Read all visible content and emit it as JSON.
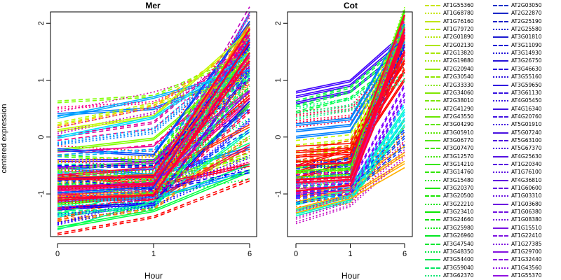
{
  "chart_data": {
    "type": "line",
    "ylabel": "centered expression",
    "ylim": [
      -1.75,
      2.2
    ],
    "y_ticks": [
      "-1",
      "0",
      "1",
      "2"
    ],
    "y_tick_values": [
      -1,
      0,
      1,
      2
    ],
    "panels": [
      {
        "title": "Mer",
        "xlabel": "Hour",
        "x_ticks": [
          "0",
          "1",
          "6"
        ]
      },
      {
        "title": "Cot",
        "xlabel": "Hour",
        "x_ticks": [
          "0",
          "1",
          "6"
        ]
      }
    ],
    "x": [
      "0",
      "1",
      "6"
    ],
    "series_note": "",
    "panel_profiles": {
      "Mer": [
        [
          -0.6,
          -0.6,
          0.9
        ],
        [
          -0.7,
          -0.55,
          1.3
        ],
        [
          -0.8,
          -0.7,
          1.6
        ],
        [
          -0.9,
          -0.75,
          1.8
        ],
        [
          -1.0,
          -0.95,
          2.0
        ],
        [
          -1.1,
          -1.0,
          1.5
        ],
        [
          -0.5,
          -0.5,
          1.1
        ],
        [
          -1.2,
          -1.1,
          0.7
        ],
        [
          -0.3,
          -0.4,
          1.9
        ],
        [
          0.5,
          0.6,
          1.3
        ],
        [
          0.3,
          0.65,
          1.1
        ],
        [
          0.1,
          0.45,
          1.6
        ],
        [
          -1.4,
          -1.2,
          0.1
        ],
        [
          -1.5,
          -1.0,
          -0.3
        ],
        [
          -1.6,
          -1.3,
          -0.6
        ],
        [
          -1.3,
          -1.15,
          0.4
        ],
        [
          -0.2,
          0.0,
          1.4
        ],
        [
          0.0,
          0.25,
          1.7
        ],
        [
          -0.8,
          -0.8,
          2.1
        ],
        [
          -1.1,
          -1.05,
          1.9
        ],
        [
          -0.65,
          -0.6,
          0.3
        ],
        [
          -0.7,
          -0.9,
          -0.55
        ],
        [
          -0.9,
          -1.0,
          0.0
        ],
        [
          -1.0,
          -0.9,
          0.6
        ],
        [
          -0.4,
          -0.3,
          1.2
        ],
        [
          -0.55,
          -0.45,
          0.8
        ],
        [
          -0.75,
          -0.7,
          1.0
        ],
        [
          -1.2,
          -1.15,
          1.2
        ],
        [
          -0.85,
          -0.8,
          1.45
        ],
        [
          -0.95,
          -0.85,
          1.75
        ],
        [
          -0.6,
          -0.75,
          -0.3
        ],
        [
          -1.05,
          -1.0,
          -0.5
        ]
      ],
      "Cot": [
        [
          -0.6,
          -0.3,
          1.2
        ],
        [
          -0.7,
          -0.5,
          1.6
        ],
        [
          -0.8,
          -0.6,
          1.9
        ],
        [
          -0.9,
          -0.85,
          2.0
        ],
        [
          -1.0,
          -1.0,
          0.4
        ],
        [
          -1.1,
          -1.05,
          0.1
        ],
        [
          0.7,
          0.9,
          1.7
        ],
        [
          0.5,
          0.75,
          1.5
        ],
        [
          0.3,
          0.4,
          1.3
        ],
        [
          0.1,
          0.2,
          1.8
        ],
        [
          -0.2,
          -0.1,
          1.9
        ],
        [
          -1.4,
          -1.1,
          -0.2
        ],
        [
          -1.3,
          -1.05,
          0.3
        ],
        [
          -0.4,
          -0.2,
          1.4
        ],
        [
          -0.5,
          -0.55,
          1.75
        ],
        [
          -0.65,
          -0.6,
          2.05
        ],
        [
          -0.75,
          -0.7,
          1.95
        ],
        [
          -0.85,
          -0.8,
          1.85
        ],
        [
          -1.2,
          -0.95,
          -0.35
        ],
        [
          -0.95,
          -0.9,
          0.8
        ],
        [
          0.4,
          0.55,
          1.1
        ],
        [
          -0.3,
          -0.25,
          1.55
        ],
        [
          -1.05,
          -0.9,
          0.0
        ],
        [
          -0.55,
          -0.5,
          2.1
        ]
      ]
    },
    "legend": {
      "col1": [
        {
          "label": "AT1G55360",
          "color": "#c8e600",
          "style": "dashed"
        },
        {
          "label": "AT1G68780",
          "color": "#c8e600",
          "style": "dotted"
        },
        {
          "label": "AT1G76160",
          "color": "#c0e600",
          "style": "solid"
        },
        {
          "label": "AT1G79720",
          "color": "#bce600",
          "style": "dashed"
        },
        {
          "label": "AT2G01890",
          "color": "#b4e600",
          "style": "dotted"
        },
        {
          "label": "AT2G02130",
          "color": "#aee600",
          "style": "solid"
        },
        {
          "label": "AT2G13820",
          "color": "#a8e600",
          "style": "dashed"
        },
        {
          "label": "AT2G19880",
          "color": "#a0e600",
          "style": "dotted"
        },
        {
          "label": "AT2G20940",
          "color": "#98e600",
          "style": "solid"
        },
        {
          "label": "AT2G30540",
          "color": "#90e600",
          "style": "dashed"
        },
        {
          "label": "AT2G33330",
          "color": "#88e600",
          "style": "dotted"
        },
        {
          "label": "AT2G34060",
          "color": "#80e600",
          "style": "solid"
        },
        {
          "label": "AT2G38010",
          "color": "#78e600",
          "style": "dashed"
        },
        {
          "label": "AT2G41290",
          "color": "#70e600",
          "style": "dotted"
        },
        {
          "label": "AT2G43550",
          "color": "#68e600",
          "style": "solid"
        },
        {
          "label": "AT3G04290",
          "color": "#60e600",
          "style": "dashed"
        },
        {
          "label": "AT3G05910",
          "color": "#58e600",
          "style": "dotted"
        },
        {
          "label": "AT3G06770",
          "color": "#50e600",
          "style": "solid"
        },
        {
          "label": "AT3G07470",
          "color": "#48e600",
          "style": "dashed"
        },
        {
          "label": "AT3G12570",
          "color": "#40e600",
          "style": "dotted"
        },
        {
          "label": "AT3G14210",
          "color": "#38e600",
          "style": "solid"
        },
        {
          "label": "AT3G14760",
          "color": "#30e600",
          "style": "dashed"
        },
        {
          "label": "AT3G15480",
          "color": "#28e600",
          "style": "dotted"
        },
        {
          "label": "AT3G20370",
          "color": "#20e600",
          "style": "solid"
        },
        {
          "label": "AT3G20500",
          "color": "#18e600",
          "style": "dashed"
        },
        {
          "label": "AT3G22210",
          "color": "#10e600",
          "style": "dotted"
        },
        {
          "label": "AT3G23410",
          "color": "#08e600",
          "style": "solid"
        },
        {
          "label": "AT3G24660",
          "color": "#00e600",
          "style": "dashed"
        },
        {
          "label": "AT3G25980",
          "color": "#00e610",
          "style": "dotted"
        },
        {
          "label": "AT3G26960",
          "color": "#00e620",
          "style": "solid"
        },
        {
          "label": "AT3G47540",
          "color": "#00e630",
          "style": "dashed"
        },
        {
          "label": "AT3G48350",
          "color": "#00e640",
          "style": "dotted"
        },
        {
          "label": "AT3G54400",
          "color": "#00e650",
          "style": "solid"
        },
        {
          "label": "AT3G59040",
          "color": "#00e660",
          "style": "dashed"
        },
        {
          "label": "AT3G62370",
          "color": "#00e670",
          "style": "dotted"
        }
      ],
      "col2": [
        {
          "label": "AT2G03050",
          "color": "#1a30c8",
          "style": "dashed"
        },
        {
          "label": "AT2G22870",
          "color": "#1a28c8",
          "style": "solid"
        },
        {
          "label": "AT2G25190",
          "color": "#1a20c8",
          "style": "dashed"
        },
        {
          "label": "AT2G25580",
          "color": "#1a20d0",
          "style": "dotted"
        },
        {
          "label": "AT3G01810",
          "color": "#1a18d0",
          "style": "solid"
        },
        {
          "label": "AT3G11090",
          "color": "#1c14d4",
          "style": "dashed"
        },
        {
          "label": "AT3G14930",
          "color": "#2010d8",
          "style": "dotted"
        },
        {
          "label": "AT3G26750",
          "color": "#2410d8",
          "style": "solid"
        },
        {
          "label": "AT3G46630",
          "color": "#2810dc",
          "style": "dashed"
        },
        {
          "label": "AT3G55160",
          "color": "#2c10dc",
          "style": "dotted"
        },
        {
          "label": "AT3G59650",
          "color": "#3010e0",
          "style": "solid"
        },
        {
          "label": "AT3G61130",
          "color": "#3410e0",
          "style": "dashed"
        },
        {
          "label": "AT4G05450",
          "color": "#3810e0",
          "style": "dotted"
        },
        {
          "label": "AT4G16340",
          "color": "#3c10e0",
          "style": "solid"
        },
        {
          "label": "AT4G20760",
          "color": "#4010e0",
          "style": "dashed"
        },
        {
          "label": "AT5G01910",
          "color": "#4410e0",
          "style": "dotted"
        },
        {
          "label": "AT5G07240",
          "color": "#4810e0",
          "style": "solid"
        },
        {
          "label": "AT5G63100",
          "color": "#4c10e0",
          "style": "dashed"
        },
        {
          "label": "AT5G67370",
          "color": "#5010e0",
          "style": "dotted"
        },
        {
          "label": "AT4G25630",
          "color": "#5410e0",
          "style": "solid"
        },
        {
          "label": "AT1G20340",
          "color": "#5810e0",
          "style": "dashed"
        },
        {
          "label": "AT1G76100",
          "color": "#5c10e0",
          "style": "dotted"
        },
        {
          "label": "AT4G36810",
          "color": "#6010e0",
          "style": "solid"
        },
        {
          "label": "AT1G60600",
          "color": "#6410e0",
          "style": "dashed"
        },
        {
          "label": "AT1G03310",
          "color": "#6810e0",
          "style": "dotted"
        },
        {
          "label": "AT1G03680",
          "color": "#6c10e0",
          "style": "solid"
        },
        {
          "label": "AT1G06380",
          "color": "#7010e0",
          "style": "dashed"
        },
        {
          "label": "AT1G08380",
          "color": "#7410e0",
          "style": "dotted"
        },
        {
          "label": "AT1G15510",
          "color": "#7810e0",
          "style": "solid"
        },
        {
          "label": "AT1G22410",
          "color": "#7c10e0",
          "style": "dashed"
        },
        {
          "label": "AT1G27385",
          "color": "#8010e0",
          "style": "dotted"
        },
        {
          "label": "AT1G29700",
          "color": "#8410e0",
          "style": "solid"
        },
        {
          "label": "AT1G32440",
          "color": "#8810e0",
          "style": "dashed"
        },
        {
          "label": "AT1G43560",
          "color": "#8c10e0",
          "style": "dotted"
        },
        {
          "label": "AT1G55370",
          "color": "#9010e0",
          "style": "solid"
        }
      ]
    },
    "palette": [
      "#ff0000",
      "#ff0040",
      "#ff0080",
      "#e0009a",
      "#c000c0",
      "#8000ff",
      "#4000ff",
      "#0000ff",
      "#0040ff",
      "#0080ff",
      "#00b0ff",
      "#00e0ff",
      "#00ffc0",
      "#00ff80",
      "#00ff40",
      "#40ff00",
      "#80ff00",
      "#c0ff00",
      "#ffb000",
      "#ff8000",
      "#ff4000"
    ],
    "highlight_color": "#ff0033"
  }
}
